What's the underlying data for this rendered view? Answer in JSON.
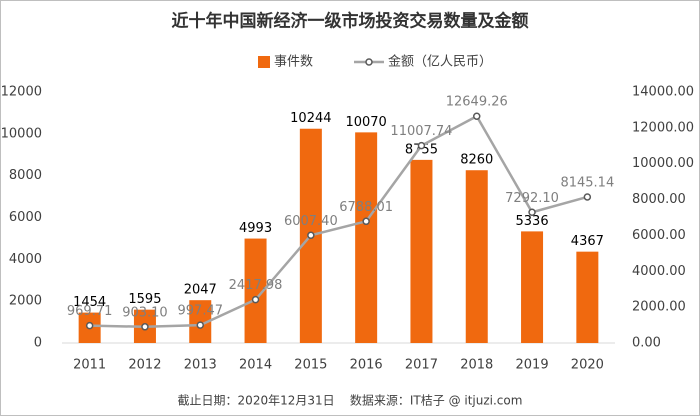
{
  "chart_data": {
    "type": "bar",
    "title": "近十年中国新经济一级市场投资交易数量及金额",
    "categories": [
      "2011",
      "2012",
      "2013",
      "2014",
      "2015",
      "2016",
      "2017",
      "2018",
      "2019",
      "2020"
    ],
    "series": [
      {
        "name": "事件数",
        "type": "bar",
        "color": "#f0690f",
        "values": [
          1454,
          1595,
          2047,
          4993,
          10244,
          10070,
          8755,
          8260,
          5336,
          4367
        ]
      },
      {
        "name": "金额（亿人民币）",
        "type": "line",
        "axis": "y2",
        "color": "#a5a5a5",
        "values": [
          969.71,
          903.1,
          997.47,
          2417.98,
          6007.4,
          6788.01,
          11007.74,
          12649.26,
          7292.1,
          8145.14
        ],
        "value_labels": [
          "969.71",
          "903.10",
          "997.47",
          "2417.98",
          "6007.40",
          "6788.01",
          "11007.74",
          "12649.26",
          "7292.10",
          "8145.14"
        ]
      }
    ],
    "ylim": [
      0,
      12000
    ],
    "yticks": [
      0,
      2000,
      4000,
      6000,
      8000,
      10000,
      12000
    ],
    "y2lim": [
      0,
      14000
    ],
    "y2ticks": [
      {
        "value": 0,
        "label": "0.00"
      },
      {
        "value": 2000,
        "label": "2000.00"
      },
      {
        "value": 4000,
        "label": "4000.00"
      },
      {
        "value": 6000,
        "label": "6000.00"
      },
      {
        "value": 8000,
        "label": "8000.00"
      },
      {
        "value": 10000,
        "label": "10000.00"
      },
      {
        "value": 12000,
        "label": "12000.00"
      },
      {
        "value": 14000,
        "label": "14000.00"
      }
    ],
    "grid": false,
    "source": "截止日期：2020年12月31日    数据来源：IT桔子 @ itjuzi.com"
  }
}
